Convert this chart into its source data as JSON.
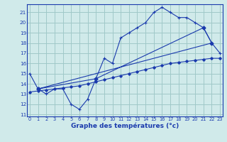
{
  "line1_x": [
    0,
    1,
    2,
    3,
    4,
    5,
    6,
    7,
    8,
    9,
    10,
    11,
    12,
    13,
    14,
    15,
    16,
    17,
    18,
    19,
    20,
    21,
    22,
    23
  ],
  "line1_y": [
    15.0,
    13.5,
    13.0,
    13.5,
    13.5,
    12.0,
    11.5,
    12.5,
    14.5,
    16.5,
    16.0,
    18.5,
    19.0,
    19.5,
    20.0,
    21.0,
    21.5,
    21.0,
    20.5,
    20.5,
    20.0,
    19.5,
    18.0,
    17.0
  ],
  "line2_x": [
    0,
    1,
    2,
    3,
    4,
    5,
    6,
    7,
    8,
    9,
    10,
    11,
    12,
    13,
    14,
    15,
    16,
    17,
    18,
    19,
    20,
    21,
    22,
    23
  ],
  "line2_y": [
    13.2,
    13.3,
    13.4,
    13.5,
    13.6,
    13.7,
    13.8,
    14.0,
    14.2,
    14.4,
    14.6,
    14.8,
    15.0,
    15.2,
    15.4,
    15.6,
    15.8,
    16.0,
    16.1,
    16.2,
    16.3,
    16.4,
    16.5,
    16.5
  ],
  "poly_x": [
    1,
    8,
    21,
    22,
    1
  ],
  "poly_y": [
    13.5,
    14.5,
    19.5,
    18.0,
    13.5
  ],
  "bg_color": "#d0eaea",
  "line_color": "#1a3aad",
  "grid_color": "#a0c8c8",
  "xlabel": "Graphe des températures (°c)",
  "xlim": [
    -0.3,
    23.3
  ],
  "ylim": [
    10.8,
    21.8
  ],
  "yticks": [
    11,
    12,
    13,
    14,
    15,
    16,
    17,
    18,
    19,
    20,
    21
  ],
  "xticks": [
    0,
    1,
    2,
    3,
    4,
    5,
    6,
    7,
    8,
    9,
    10,
    11,
    12,
    13,
    14,
    15,
    16,
    17,
    18,
    19,
    20,
    21,
    22,
    23
  ]
}
